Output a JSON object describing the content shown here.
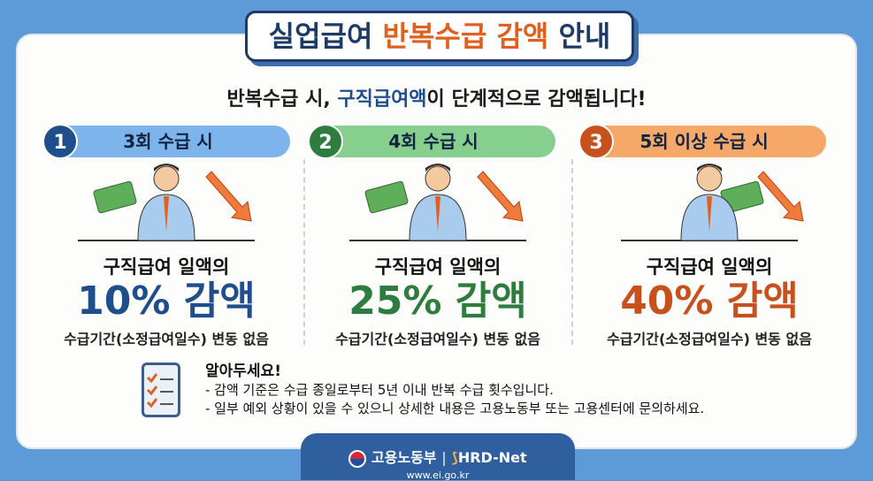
{
  "title": {
    "part1": "실업급여",
    "highlight": "반복수급 감액",
    "part2": "안내"
  },
  "subtitle": {
    "part1": "반복수급 시,",
    "highlight": "구직급여액",
    "part2": "이 단계적으로 감액됩니다!"
  },
  "tiers": [
    {
      "number": "1",
      "label": "3회 수급 시",
      "line1": "구직급여 일액의",
      "percent": "10% 감액",
      "line3": "수급기간(소정급여일수) 변동 없음",
      "color": "#1e4e8c",
      "pill": "#7db4ec"
    },
    {
      "number": "2",
      "label": "4회 수급 시",
      "line1": "구직급여 일액의",
      "percent": "25% 감액",
      "line3": "수급기간(소정급여일수) 변동 없음",
      "color": "#2e7d3e",
      "pill": "#86cf8f"
    },
    {
      "number": "3",
      "label": "5회 이상 수급 시",
      "line1": "구직급여 일액의",
      "percent": "40% 감액",
      "line3": "수급기간(소정급여일수) 변동 없음",
      "color": "#c8501c",
      "pill": "#f5a868"
    }
  ],
  "notice": {
    "heading": "알아두세요!",
    "items": [
      "- 감액 기준은 수급 종일로부터 5년 이내 반복 수급 횟수입니다.",
      "- 일부 예외 상황이 있을 수 있으니 상세한 내용은 고용노동부 또는 고용센터에 문의하세요."
    ]
  },
  "footer": {
    "ministry": "고용노동부",
    "separator": "|",
    "brand": "HRD-Net",
    "url": "www.ei.go.kr"
  }
}
